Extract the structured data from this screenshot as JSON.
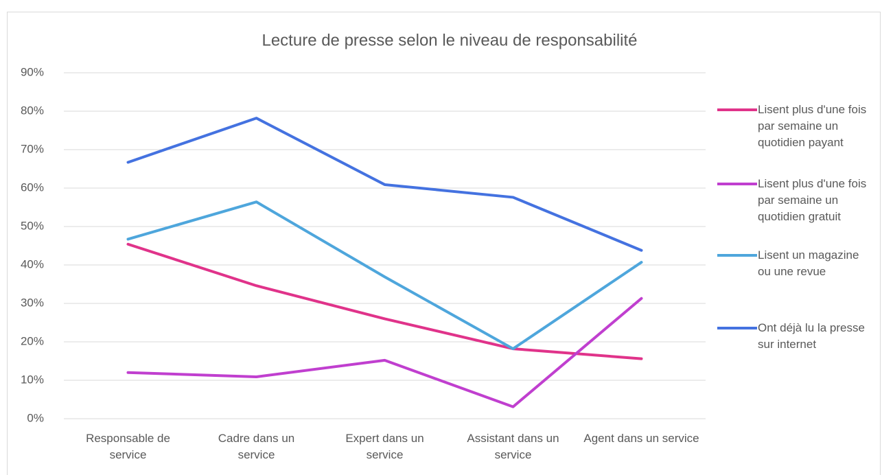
{
  "chart_data": {
    "type": "line",
    "title": "Lecture de presse selon le niveau de responsabilité",
    "categories": [
      "Responsable de service",
      "Cadre dans un service",
      "Expert dans un service",
      "Assistant dans un service",
      "Agent dans un service"
    ],
    "series": [
      {
        "name": "Lisent plus d'une fois par semaine un quotidien payant",
        "color": "#e0338a",
        "values": [
          45.4,
          34.6,
          26,
          18.2,
          15.6
        ]
      },
      {
        "name": "Lisent plus d'une fois par semaine un quotidien gratuit",
        "color": "#c03fcf",
        "values": [
          12,
          10.9,
          15.2,
          3.1,
          31.3
        ]
      },
      {
        "name": "Lisent un magazine ou une revue",
        "color": "#4ea6dc",
        "values": [
          46.7,
          56.4,
          36.9,
          18.2,
          40.7
        ]
      },
      {
        "name": "Ont déjà lu la presse sur internet",
        "color": "#4472e0",
        "values": [
          66.7,
          78.2,
          60.9,
          57.6,
          43.8
        ]
      }
    ],
    "ylim": [
      0,
      90
    ],
    "yticks": [
      {
        "value": 0,
        "label": "0%"
      },
      {
        "value": 10,
        "label": "10%"
      },
      {
        "value": 20,
        "label": "20%"
      },
      {
        "value": 30,
        "label": "30%"
      },
      {
        "value": 40,
        "label": "40%"
      },
      {
        "value": 50,
        "label": "50%"
      },
      {
        "value": 60,
        "label": "60%"
      },
      {
        "value": 70,
        "label": "70%"
      },
      {
        "value": 80,
        "label": "80%"
      },
      {
        "value": 90,
        "label": "90%"
      }
    ],
    "grid": true,
    "legend": "right"
  }
}
